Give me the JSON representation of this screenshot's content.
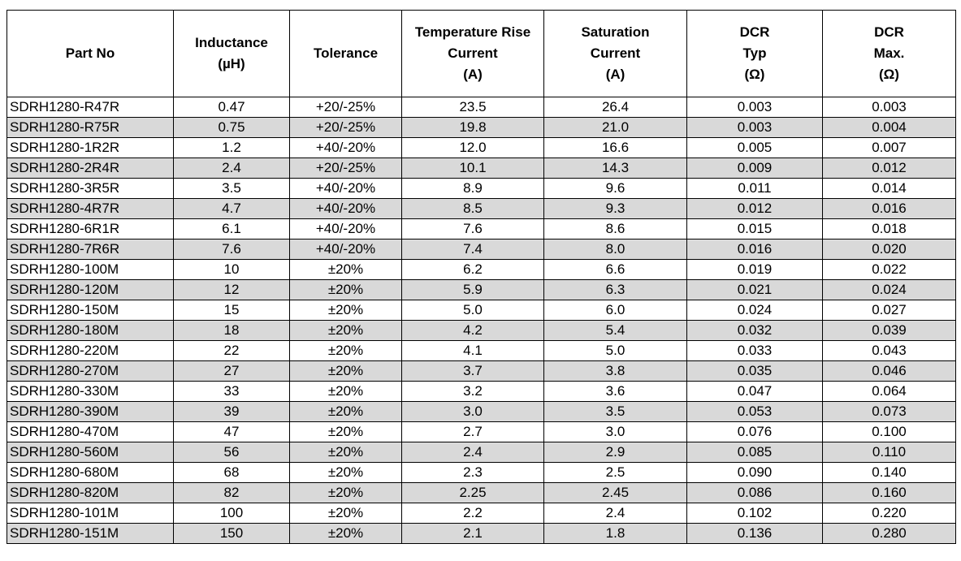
{
  "headers": [
    [
      "Part No"
    ],
    [
      "Inductance",
      "(µH)"
    ],
    [
      "Tolerance"
    ],
    [
      "Temperature Rise",
      "Current",
      "(A)"
    ],
    [
      "Saturation",
      "Current",
      "(A)"
    ],
    [
      "DCR",
      "Typ",
      "(Ω)"
    ],
    [
      "DCR",
      "Max.",
      "(Ω)"
    ]
  ],
  "rows": [
    [
      "SDRH1280-R47R",
      "0.47",
      "+20/-25%",
      "23.5",
      "26.4",
      "0.003",
      "0.003"
    ],
    [
      "SDRH1280-R75R",
      "0.75",
      "+20/-25%",
      "19.8",
      "21.0",
      "0.003",
      "0.004"
    ],
    [
      "SDRH1280-1R2R",
      "1.2",
      "+40/-20%",
      "12.0",
      "16.6",
      "0.005",
      "0.007"
    ],
    [
      "SDRH1280-2R4R",
      "2.4",
      "+20/-25%",
      "10.1",
      "14.3",
      "0.009",
      "0.012"
    ],
    [
      "SDRH1280-3R5R",
      "3.5",
      "+40/-20%",
      "8.9",
      "9.6",
      "0.011",
      "0.014"
    ],
    [
      "SDRH1280-4R7R",
      "4.7",
      "+40/-20%",
      "8.5",
      "9.3",
      "0.012",
      "0.016"
    ],
    [
      "SDRH1280-6R1R",
      "6.1",
      "+40/-20%",
      "7.6",
      "8.6",
      "0.015",
      "0.018"
    ],
    [
      "SDRH1280-7R6R",
      "7.6",
      "+40/-20%",
      "7.4",
      "8.0",
      "0.016",
      "0.020"
    ],
    [
      "SDRH1280-100M",
      "10",
      "±20%",
      "6.2",
      "6.6",
      "0.019",
      "0.022"
    ],
    [
      "SDRH1280-120M",
      "12",
      "±20%",
      "5.9",
      "6.3",
      "0.021",
      "0.024"
    ],
    [
      "SDRH1280-150M",
      "15",
      "±20%",
      "5.0",
      "6.0",
      "0.024",
      "0.027"
    ],
    [
      "SDRH1280-180M",
      "18",
      "±20%",
      "4.2",
      "5.4",
      "0.032",
      "0.039"
    ],
    [
      "SDRH1280-220M",
      "22",
      "±20%",
      "4.1",
      "5.0",
      "0.033",
      "0.043"
    ],
    [
      "SDRH1280-270M",
      "27",
      "±20%",
      "3.7",
      "3.8",
      "0.035",
      "0.046"
    ],
    [
      "SDRH1280-330M",
      "33",
      "±20%",
      "3.2",
      "3.6",
      "0.047",
      "0.064"
    ],
    [
      "SDRH1280-390M",
      "39",
      "±20%",
      "3.0",
      "3.5",
      "0.053",
      "0.073"
    ],
    [
      "SDRH1280-470M",
      "47",
      "±20%",
      "2.7",
      "3.0",
      "0.076",
      "0.100"
    ],
    [
      "SDRH1280-560M",
      "56",
      "±20%",
      "2.4",
      "2.9",
      "0.085",
      "0.110"
    ],
    [
      "SDRH1280-680M",
      "68",
      "±20%",
      "2.3",
      "2.5",
      "0.090",
      "0.140"
    ],
    [
      "SDRH1280-820M",
      "82",
      "±20%",
      "2.25",
      "2.45",
      "0.086",
      "0.160"
    ],
    [
      "SDRH1280-101M",
      "100",
      "±20%",
      "2.2",
      "2.4",
      "0.102",
      "0.220"
    ],
    [
      "SDRH1280-151M",
      "150",
      "±20%",
      "2.1",
      "1.8",
      "0.136",
      "0.280"
    ]
  ],
  "colors": {
    "row_alt": "#d9d9d9",
    "row_base": "#ffffff",
    "border": "#000000"
  }
}
